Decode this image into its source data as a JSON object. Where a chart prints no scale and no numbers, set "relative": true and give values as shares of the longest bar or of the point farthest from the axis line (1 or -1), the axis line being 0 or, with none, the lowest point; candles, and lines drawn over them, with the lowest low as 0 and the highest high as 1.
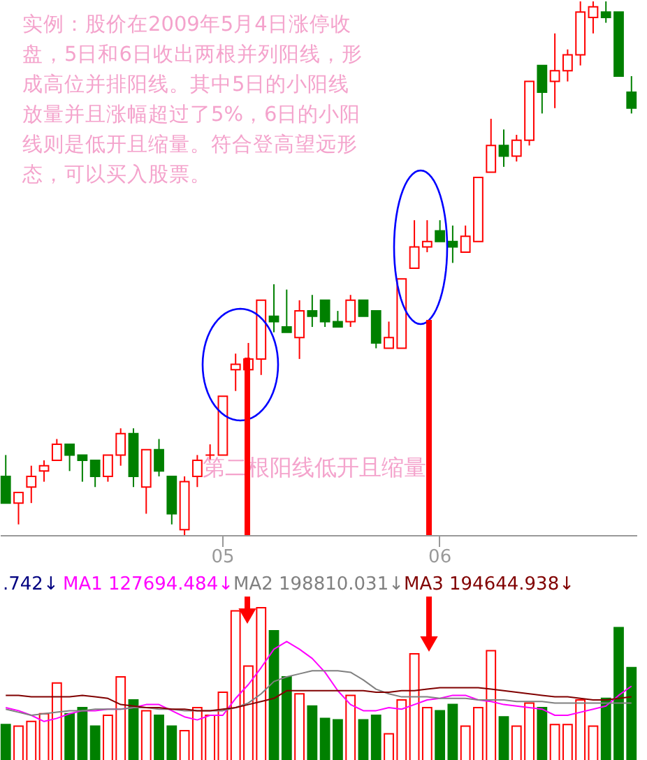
{
  "chart_data": [
    {
      "type": "candlestick",
      "relative": true,
      "categories": [
        null,
        null,
        null,
        null,
        null,
        null,
        null,
        null,
        null,
        null,
        null,
        null,
        null,
        null,
        null,
        null,
        null,
        "05",
        null,
        null,
        null,
        null,
        null,
        null,
        null,
        null,
        null,
        null,
        null,
        null,
        null,
        null,
        null,
        null,
        "06",
        null,
        null,
        null,
        null,
        null,
        null,
        null,
        null,
        null,
        null,
        null,
        null,
        null,
        null,
        null
      ],
      "ohlc": [
        [
          0.11,
          0.15,
          0.06,
          0.06
        ],
        [
          0.06,
          0.08,
          0.02,
          0.08
        ],
        [
          0.09,
          0.13,
          0.06,
          0.11
        ],
        [
          0.12,
          0.14,
          0.1,
          0.13
        ],
        [
          0.14,
          0.18,
          0.14,
          0.17
        ],
        [
          0.17,
          0.17,
          0.12,
          0.15
        ],
        [
          0.15,
          0.15,
          0.1,
          0.14
        ],
        [
          0.14,
          0.14,
          0.09,
          0.11
        ],
        [
          0.11,
          0.15,
          0.1,
          0.15
        ],
        [
          0.15,
          0.2,
          0.13,
          0.19
        ],
        [
          0.19,
          0.2,
          0.09,
          0.11
        ],
        [
          0.09,
          0.16,
          0.04,
          0.16
        ],
        [
          0.16,
          0.18,
          0.11,
          0.12
        ],
        [
          0.11,
          0.11,
          0.02,
          0.04
        ],
        [
          0.01,
          0.11,
          0,
          0.1
        ],
        [
          0.11,
          0.15,
          0.09,
          0.14
        ],
        [
          0.15,
          0.17,
          0.14,
          0.15
        ],
        [
          0.15,
          0.26,
          0.15,
          0.26
        ],
        [
          0.31,
          0.34,
          0.27,
          0.32
        ],
        [
          0.31,
          0.36,
          0.27,
          0.33
        ],
        [
          0.33,
          0.44,
          0.3,
          0.44
        ],
        [
          0.41,
          0.47,
          0.38,
          0.4
        ],
        [
          0.39,
          0.46,
          0.38,
          0.38
        ],
        [
          0.37,
          0.44,
          0.33,
          0.42
        ],
        [
          0.42,
          0.45,
          0.39,
          0.41
        ],
        [
          0.44,
          0.44,
          0.39,
          0.4
        ],
        [
          0.4,
          0.42,
          0.39,
          0.39
        ],
        [
          0.4,
          0.45,
          0.39,
          0.44
        ],
        [
          0.44,
          0.44,
          0.41,
          0.41
        ],
        [
          0.42,
          0.42,
          0.35,
          0.36
        ],
        [
          0.35,
          0.4,
          0.35,
          0.37
        ],
        [
          0.35,
          0.48,
          0.35,
          0.48
        ],
        [
          0.5,
          0.59,
          0.5,
          0.54
        ],
        [
          0.54,
          0.59,
          0.53,
          0.55
        ],
        [
          0.57,
          0.59,
          0.55,
          0.55
        ],
        [
          0.55,
          0.58,
          0.51,
          0.54
        ],
        [
          0.53,
          0.58,
          0.53,
          0.56
        ],
        [
          0.55,
          0.67,
          0.55,
          0.67
        ],
        [
          0.68,
          0.78,
          0.68,
          0.73
        ],
        [
          0.73,
          0.76,
          0.69,
          0.71
        ],
        [
          0.71,
          0.75,
          0.7,
          0.74
        ],
        [
          0.74,
          0.85,
          0.73,
          0.85
        ],
        [
          0.88,
          0.88,
          0.79,
          0.83
        ],
        [
          0.85,
          0.94,
          0.8,
          0.87
        ],
        [
          0.87,
          0.91,
          0.85,
          0.9
        ],
        [
          0.9,
          1.0,
          0.88,
          0.98
        ],
        [
          0.97,
          1.0,
          0.94,
          0.99
        ],
        [
          0.98,
          1.0,
          0.96,
          0.97
        ],
        [
          0.98,
          0.98,
          0.86,
          0.86
        ],
        [
          0.83,
          0.86,
          0.79,
          0.8
        ]
      ],
      "colors": [
        "#008000",
        "#ff0000",
        "#ff0000",
        "#ff0000",
        "#ff0000",
        "#008000",
        "#008000",
        "#008000",
        "#ff0000",
        "#ff0000",
        "#008000",
        "#ff0000",
        "#008000",
        "#008000",
        "#ff0000",
        "#ff0000",
        "#ff0000",
        "#ff0000",
        "#ff0000",
        "#ff0000",
        "#ff0000",
        "#008000",
        "#008000",
        "#ff0000",
        "#008000",
        "#008000",
        "#008000",
        "#ff0000",
        "#008000",
        "#008000",
        "#ff0000",
        "#ff0000",
        "#ff0000",
        "#ff0000",
        "#008000",
        "#008000",
        "#ff0000",
        "#ff0000",
        "#ff0000",
        "#008000",
        "#ff0000",
        "#ff0000",
        "#008000",
        "#ff0000",
        "#ff0000",
        "#ff0000",
        "#ff0000",
        "#008000",
        "#008000",
        "#008000"
      ],
      "annotations": [
        "实例：股价在2009年5月4日涨停收盘，5日和6日收出两根并列阳线，形成高位并排阳线。其中5日的小阳线放量并且涨幅超过了5%，6日的小阳线则是低开且缩量。符合登高望远形态，可以买入股票。",
        "第二根阳线低开且缩量"
      ]
    },
    {
      "type": "bar",
      "relative": true,
      "categories": [
        null,
        null,
        null,
        null,
        null,
        null,
        null,
        null,
        null,
        null,
        null,
        null,
        null,
        null,
        null,
        null,
        null,
        null,
        null,
        null,
        null,
        null,
        null,
        null,
        null,
        null,
        null,
        null,
        null,
        null,
        null,
        null,
        null,
        null,
        null,
        null,
        null,
        null,
        null,
        null,
        null,
        null,
        null,
        null,
        null,
        null,
        null,
        null,
        null,
        null
      ],
      "annotations": [
        ".742↓"
      ],
      "series": [
        {
          "type": "bar",
          "colors": [
            "#008000",
            "#ff0000",
            "#ff0000",
            "#ff0000",
            "#ff0000",
            "#008000",
            "#008000",
            "#008000",
            "#ff0000",
            "#ff0000",
            "#008000",
            "#ff0000",
            "#008000",
            "#008000",
            "#ff0000",
            "#ff0000",
            "#ff0000",
            "#ff0000",
            "#ff0000",
            "#ff0000",
            "#ff0000",
            "#008000",
            "#008000",
            "#ff0000",
            "#008000",
            "#008000",
            "#008000",
            "#ff0000",
            "#008000",
            "#008000",
            "#ff0000",
            "#ff0000",
            "#ff0000",
            "#ff0000",
            "#008000",
            "#008000",
            "#ff0000",
            "#ff0000",
            "#ff0000",
            "#008000",
            "#ff0000",
            "#ff0000",
            "#008000",
            "#ff0000",
            "#ff0000",
            "#ff0000",
            "#ff0000",
            "#008000",
            "#008000",
            "#008000"
          ],
          "values": [
            0.24,
            0.23,
            0.26,
            0.31,
            0.51,
            0.31,
            0.35,
            0.23,
            0.3,
            0.55,
            0.4,
            0.33,
            0.3,
            0.23,
            0.2,
            0.35,
            0.3,
            0.45,
            0.98,
            0.62,
            1,
            0.85,
            0.55,
            0.44,
            0.36,
            0.28,
            0.27,
            0.43,
            0.27,
            0.3,
            0.18,
            0.4,
            0.7,
            0.35,
            0.33,
            0.37,
            0.23,
            0.35,
            0.72,
            0.29,
            0.23,
            0.38,
            0.35,
            0.24,
            0.24,
            0.4,
            0.23,
            0.41,
            0.87,
            0.61
          ]
        },
        {
          "type": "line",
          "name": "MA1 127694.484↓",
          "color": "#ff00ff",
          "values": [
            0.35,
            0.33,
            0.3,
            0.26,
            0.28,
            0.31,
            0.33,
            0.33,
            0.34,
            0.34,
            0.35,
            0.37,
            0.37,
            0.33,
            0.29,
            0.27,
            0.3,
            0.3,
            0.41,
            0.5,
            0.61,
            0.73,
            0.78,
            0.73,
            0.67,
            0.58,
            0.46,
            0.37,
            0.33,
            0.33,
            0.35,
            0.34,
            0.37,
            0.4,
            0.41,
            0.43,
            0.43,
            0.4,
            0.39,
            0.37,
            0.36,
            0.35,
            0.34,
            0.3,
            0.3,
            0.32,
            0.34,
            0.36,
            0.43,
            0.49
          ]
        },
        {
          "type": "line",
          "name": "MA2 198810.031↓",
          "color": "#808080",
          "values": [
            0.34,
            0.32,
            0.3,
            0.31,
            0.32,
            0.33,
            0.33,
            0.34,
            0.34,
            0.34,
            0.35,
            0.35,
            0.34,
            0.34,
            0.33,
            0.33,
            0.33,
            0.33,
            0.35,
            0.38,
            0.44,
            0.52,
            0.55,
            0.57,
            0.59,
            0.59,
            0.59,
            0.58,
            0.53,
            0.47,
            0.44,
            0.42,
            0.42,
            0.42,
            0.41,
            0.41,
            0.41,
            0.4,
            0.4,
            0.4,
            0.39,
            0.39,
            0.39,
            0.38,
            0.38,
            0.38,
            0.38,
            0.38,
            0.38,
            0.38
          ]
        },
        {
          "type": "line",
          "name": "MA3 194644.938↓",
          "color": "#800000",
          "values": [
            0.43,
            0.43,
            0.42,
            0.42,
            0.42,
            0.42,
            0.43,
            0.42,
            0.41,
            0.37,
            0.36,
            0.35,
            0.35,
            0.34,
            0.34,
            0.33,
            0.33,
            0.34,
            0.35,
            0.37,
            0.39,
            0.41,
            0.46,
            0.46,
            0.46,
            0.46,
            0.46,
            0.46,
            0.46,
            0.45,
            0.45,
            0.46,
            0.46,
            0.47,
            0.48,
            0.48,
            0.48,
            0.48,
            0.47,
            0.46,
            0.45,
            0.44,
            0.43,
            0.42,
            0.42,
            0.41,
            0.4,
            0.4,
            0.41,
            0.42
          ]
        }
      ]
    }
  ]
}
